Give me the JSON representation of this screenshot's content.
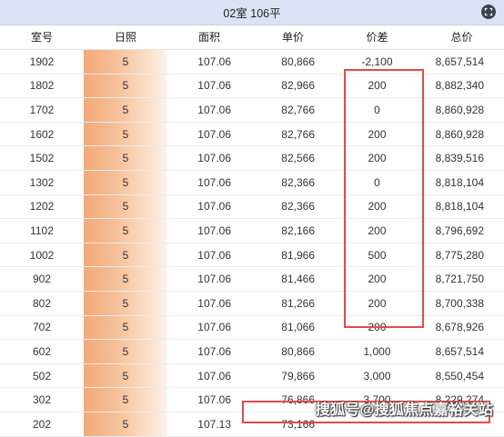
{
  "title": "02室 106平",
  "headers": [
    "室号",
    "日照",
    "面积",
    "单价",
    "价差",
    "总价"
  ],
  "rows": [
    {
      "room": "1902",
      "sun": "5",
      "area": "107.06",
      "price": "80,866",
      "diff": "-2,100",
      "total": "8,657,514"
    },
    {
      "room": "1802",
      "sun": "5",
      "area": "107.06",
      "price": "82,966",
      "diff": "200",
      "total": "8,882,340"
    },
    {
      "room": "1702",
      "sun": "5",
      "area": "107.06",
      "price": "82,766",
      "diff": "0",
      "total": "8,860,928"
    },
    {
      "room": "1602",
      "sun": "5",
      "area": "107.06",
      "price": "82,766",
      "diff": "200",
      "total": "8,860,928"
    },
    {
      "room": "1502",
      "sun": "5",
      "area": "107.06",
      "price": "82,566",
      "diff": "200",
      "total": "8,839,516"
    },
    {
      "room": "1302",
      "sun": "5",
      "area": "107.06",
      "price": "82,366",
      "diff": "0",
      "total": "8,818,104"
    },
    {
      "room": "1202",
      "sun": "5",
      "area": "107.06",
      "price": "82,366",
      "diff": "200",
      "total": "8,818,104"
    },
    {
      "room": "1102",
      "sun": "5",
      "area": "107.06",
      "price": "82,166",
      "diff": "200",
      "total": "8,796,692"
    },
    {
      "room": "1002",
      "sun": "5",
      "area": "107.06",
      "price": "81,966",
      "diff": "500",
      "total": "8,775,280"
    },
    {
      "room": "902",
      "sun": "5",
      "area": "107.06",
      "price": "81,466",
      "diff": "200",
      "total": "8,721,750"
    },
    {
      "room": "802",
      "sun": "5",
      "area": "107.06",
      "price": "81,266",
      "diff": "200",
      "total": "8,700,338"
    },
    {
      "room": "702",
      "sun": "5",
      "area": "107.06",
      "price": "81,066",
      "diff": "200",
      "total": "8,678,926"
    },
    {
      "room": "602",
      "sun": "5",
      "area": "107.06",
      "price": "80,866",
      "diff": "1,000",
      "total": "8,657,514"
    },
    {
      "room": "502",
      "sun": "5",
      "area": "107.06",
      "price": "79,866",
      "diff": "3,000",
      "total": "8,550,454"
    },
    {
      "room": "302",
      "sun": "5",
      "area": "107.06",
      "price": "76,866",
      "diff": "3,700",
      "total": "8,229,274"
    },
    {
      "room": "202",
      "sun": "5",
      "area": "107.13",
      "price": "73,166",
      "diff": "",
      "total": ""
    }
  ],
  "watermark": "搜狐号@搜狐焦点嘉裕关站",
  "colors": {
    "header_bg": "#dce3f7",
    "highlight_border": "#e14b4b",
    "sun_gradient_start": "#f2a878"
  },
  "icons": {
    "corner": "expand-icon"
  }
}
